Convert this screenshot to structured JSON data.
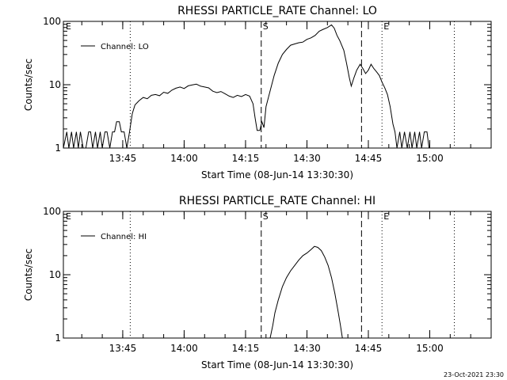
{
  "chart_data": [
    {
      "type": "line",
      "title": "RHESSI PARTICLE_RATE Channel: LO",
      "xlabel": "Start Time (08-Jun-14 13:30:30)",
      "ylabel": "Counts/sec",
      "y_scale": "log",
      "ylim": [
        1,
        100
      ],
      "y_ticks": [
        1,
        10,
        100
      ],
      "y_tick_labels": [
        "1",
        "10",
        "100"
      ],
      "x_tick_labels": [
        "13:45",
        "14:00",
        "14:15",
        "14:30",
        "14:45",
        "15:00"
      ],
      "legend": {
        "placement": "top-left",
        "label": "Channel: LO"
      },
      "markers": [
        {
          "label": "E",
          "time": "13:30:30",
          "style": "none"
        },
        {
          "time": "13:46:50",
          "style": "dotted"
        },
        {
          "label": "S",
          "time": "14:18:50",
          "style": "dashed"
        },
        {
          "time": "14:43:20",
          "style": "dashed"
        },
        {
          "label": "E",
          "time": "14:48:20",
          "style": "dotted"
        },
        {
          "time": "15:06:00",
          "style": "dotted"
        }
      ],
      "series": [
        {
          "values": [
            [
              "13:30:30",
              1
            ],
            [
              "13:31:20",
              1.8
            ],
            [
              "13:31:50",
              1
            ],
            [
              "13:32:30",
              1.8
            ],
            [
              "13:33:00",
              1
            ],
            [
              "13:33:40",
              1.8
            ],
            [
              "13:34:10",
              1
            ],
            [
              "13:34:40",
              1.8
            ],
            [
              "13:35:20",
              1
            ],
            [
              "13:36:00",
              1
            ],
            [
              "13:36:40",
              1.8
            ],
            [
              "13:37:10",
              1.8
            ],
            [
              "13:37:40",
              1
            ],
            [
              "13:38:20",
              1.8
            ],
            [
              "13:38:50",
              1
            ],
            [
              "13:39:30",
              1.8
            ],
            [
              "13:40:00",
              1
            ],
            [
              "13:40:40",
              1.8
            ],
            [
              "13:41:10",
              1.8
            ],
            [
              "13:41:50",
              1
            ],
            [
              "13:42:30",
              1.8
            ],
            [
              "13:43:00",
              1.8
            ],
            [
              "13:43:30",
              2.6
            ],
            [
              "13:44:10",
              2.6
            ],
            [
              "13:44:40",
              1.8
            ],
            [
              "13:45:20",
              1.8
            ],
            [
              "13:46:00",
              1
            ],
            [
              "13:46:40",
              1.8
            ],
            [
              "13:47:20",
              3.5
            ],
            [
              "13:48:00",
              4.8
            ],
            [
              "13:49:00",
              5.6
            ],
            [
              "13:50:00",
              6.3
            ],
            [
              "13:51:00",
              6
            ],
            [
              "13:52:00",
              6.8
            ],
            [
              "13:53:00",
              7
            ],
            [
              "13:54:00",
              6.7
            ],
            [
              "13:55:00",
              7.6
            ],
            [
              "13:56:00",
              7.3
            ],
            [
              "13:57:00",
              8.2
            ],
            [
              "13:58:00",
              8.8
            ],
            [
              "13:59:00",
              9.2
            ],
            [
              "14:00:00",
              8.7
            ],
            [
              "14:01:00",
              9.6
            ],
            [
              "14:02:00",
              9.9
            ],
            [
              "14:03:00",
              10.2
            ],
            [
              "14:04:00",
              9.5
            ],
            [
              "14:05:00",
              9.2
            ],
            [
              "14:06:00",
              8.9
            ],
            [
              "14:07:00",
              7.9
            ],
            [
              "14:08:00",
              7.5
            ],
            [
              "14:09:00",
              7.8
            ],
            [
              "14:10:00",
              7.2
            ],
            [
              "14:11:00",
              6.6
            ],
            [
              "14:12:00",
              6.3
            ],
            [
              "14:13:00",
              6.8
            ],
            [
              "14:14:00",
              6.5
            ],
            [
              "14:15:00",
              7
            ],
            [
              "14:16:00",
              6.6
            ],
            [
              "14:16:50",
              5
            ],
            [
              "14:17:20",
              3
            ],
            [
              "14:17:50",
              1.9
            ],
            [
              "14:18:30",
              1.9
            ],
            [
              "14:19:00",
              2.6
            ],
            [
              "14:19:30",
              2.1
            ],
            [
              "14:20:00",
              4.5
            ],
            [
              "14:21:00",
              8
            ],
            [
              "14:22:00",
              14
            ],
            [
              "14:23:00",
              22
            ],
            [
              "14:24:00",
              30
            ],
            [
              "14:25:00",
              36
            ],
            [
              "14:26:00",
              42
            ],
            [
              "14:27:00",
              44
            ],
            [
              "14:28:00",
              46
            ],
            [
              "14:29:00",
              47
            ],
            [
              "14:30:00",
              52
            ],
            [
              "14:31:00",
              55
            ],
            [
              "14:32:00",
              60
            ],
            [
              "14:33:00",
              70
            ],
            [
              "14:34:00",
              75
            ],
            [
              "14:35:00",
              80
            ],
            [
              "14:36:00",
              88
            ],
            [
              "14:36:40",
              78
            ],
            [
              "14:37:20",
              60
            ],
            [
              "14:38:00",
              50
            ],
            [
              "14:39:00",
              35
            ],
            [
              "14:39:40",
              22
            ],
            [
              "14:40:20",
              13
            ],
            [
              "14:40:50",
              9.5
            ],
            [
              "14:41:30",
              13
            ],
            [
              "14:42:10",
              17
            ],
            [
              "14:43:00",
              21
            ],
            [
              "14:43:40",
              18
            ],
            [
              "14:44:20",
              15
            ],
            [
              "14:45:00",
              17
            ],
            [
              "14:45:40",
              21
            ],
            [
              "14:46:20",
              18
            ],
            [
              "14:47:00",
              16
            ],
            [
              "14:47:40",
              14
            ],
            [
              "14:48:20",
              11
            ],
            [
              "14:49:00",
              9
            ],
            [
              "14:49:40",
              7
            ],
            [
              "14:50:20",
              4.5
            ],
            [
              "14:51:00",
              2.4
            ],
            [
              "14:51:30",
              1.8
            ],
            [
              "14:52:00",
              1
            ],
            [
              "14:52:40",
              1.8
            ],
            [
              "14:53:10",
              1
            ],
            [
              "14:53:50",
              1.8
            ],
            [
              "14:54:30",
              1
            ],
            [
              "14:55:10",
              1.8
            ],
            [
              "14:55:40",
              1
            ],
            [
              "14:56:20",
              1.8
            ],
            [
              "14:56:50",
              1
            ],
            [
              "14:57:30",
              1.8
            ],
            [
              "14:58:00",
              1
            ],
            [
              "14:58:40",
              1.8
            ],
            [
              "14:59:20",
              1.8
            ],
            [
              "14:59:50",
              1
            ]
          ]
        }
      ]
    },
    {
      "type": "line",
      "title": "RHESSI PARTICLE_RATE Channel: HI",
      "xlabel": "Start Time (08-Jun-14 13:30:30)",
      "ylabel": "Counts/sec",
      "y_scale": "log",
      "ylim": [
        1,
        100
      ],
      "y_ticks": [
        1,
        10,
        100
      ],
      "y_tick_labels": [
        "1",
        "10",
        "100"
      ],
      "x_tick_labels": [
        "13:45",
        "14:00",
        "14:15",
        "14:30",
        "14:45",
        "15:00"
      ],
      "legend": {
        "placement": "top-left",
        "label": "Channel: HI"
      },
      "markers": [
        {
          "label": "E",
          "time": "13:30:30",
          "style": "none"
        },
        {
          "time": "13:46:50",
          "style": "dotted"
        },
        {
          "label": "S",
          "time": "14:18:50",
          "style": "dashed"
        },
        {
          "time": "14:43:20",
          "style": "dashed"
        },
        {
          "label": "E",
          "time": "14:48:20",
          "style": "dotted"
        },
        {
          "time": "15:06:00",
          "style": "dotted"
        }
      ],
      "series": [
        {
          "values": [
            [
              "14:21:00",
              1
            ],
            [
              "14:21:40",
              1.6
            ],
            [
              "14:22:10",
              2.5
            ],
            [
              "14:23:00",
              4
            ],
            [
              "14:24:00",
              6.5
            ],
            [
              "14:25:00",
              9
            ],
            [
              "14:26:00",
              11.5
            ],
            [
              "14:27:00",
              14
            ],
            [
              "14:28:00",
              17
            ],
            [
              "14:29:00",
              20
            ],
            [
              "14:30:00",
              22
            ],
            [
              "14:31:00",
              25
            ],
            [
              "14:31:50",
              28
            ],
            [
              "14:32:40",
              27
            ],
            [
              "14:33:30",
              24
            ],
            [
              "14:34:20",
              19
            ],
            [
              "14:35:10",
              14
            ],
            [
              "14:36:00",
              9
            ],
            [
              "14:36:50",
              5
            ],
            [
              "14:37:40",
              2.5
            ],
            [
              "14:38:10",
              1.6
            ],
            [
              "14:38:40",
              1
            ]
          ]
        }
      ]
    }
  ],
  "timestamp": "23-Oct-2021 23:30"
}
